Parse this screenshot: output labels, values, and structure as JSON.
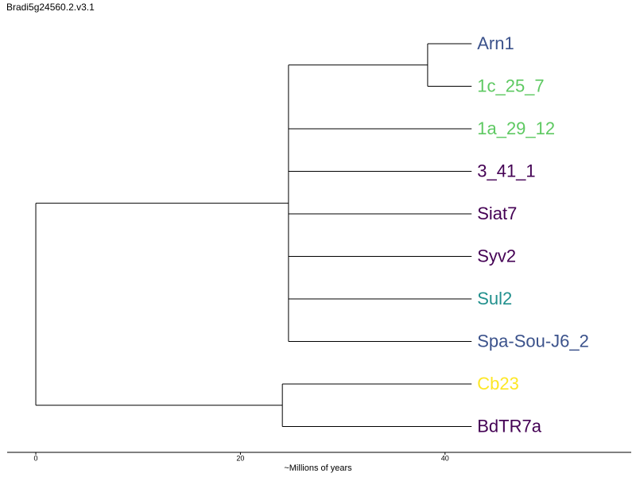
{
  "chart_data": {
    "type": "tree",
    "title": "Bradi5g24560.2.v3.1",
    "xlabel": "~Millions of years",
    "xlim": [
      -2.8,
      58.2
    ],
    "xticks": [
      0,
      20,
      40
    ],
    "tree": {
      "x": 0,
      "children": [
        {
          "x": 24.7,
          "children": [
            {
              "x": 38.3,
              "children": [
                {
                  "name": "Arn1",
                  "color": "#3b528b",
                  "x": 42.6
                },
                {
                  "name": "1c_25_7",
                  "color": "#5ec962",
                  "x": 42.6
                }
              ]
            },
            {
              "name": "1a_29_12",
              "color": "#5ec962",
              "x": 42.6
            },
            {
              "name": "3_41_1",
              "color": "#440154",
              "x": 42.6
            },
            {
              "name": "Siat7",
              "color": "#440154",
              "x": 42.6
            },
            {
              "name": "Syv2",
              "color": "#440154",
              "x": 42.6
            },
            {
              "name": "Sul2",
              "color": "#21908d",
              "x": 42.6
            },
            {
              "name": "Spa-Sou-J6_2",
              "color": "#3b528b",
              "x": 42.6
            }
          ]
        },
        {
          "x": 24.1,
          "children": [
            {
              "name": "Cb23",
              "color": "#fde725",
              "x": 42.6
            },
            {
              "name": "BdTR7a",
              "color": "#440154",
              "x": 42.6
            }
          ]
        }
      ]
    }
  }
}
